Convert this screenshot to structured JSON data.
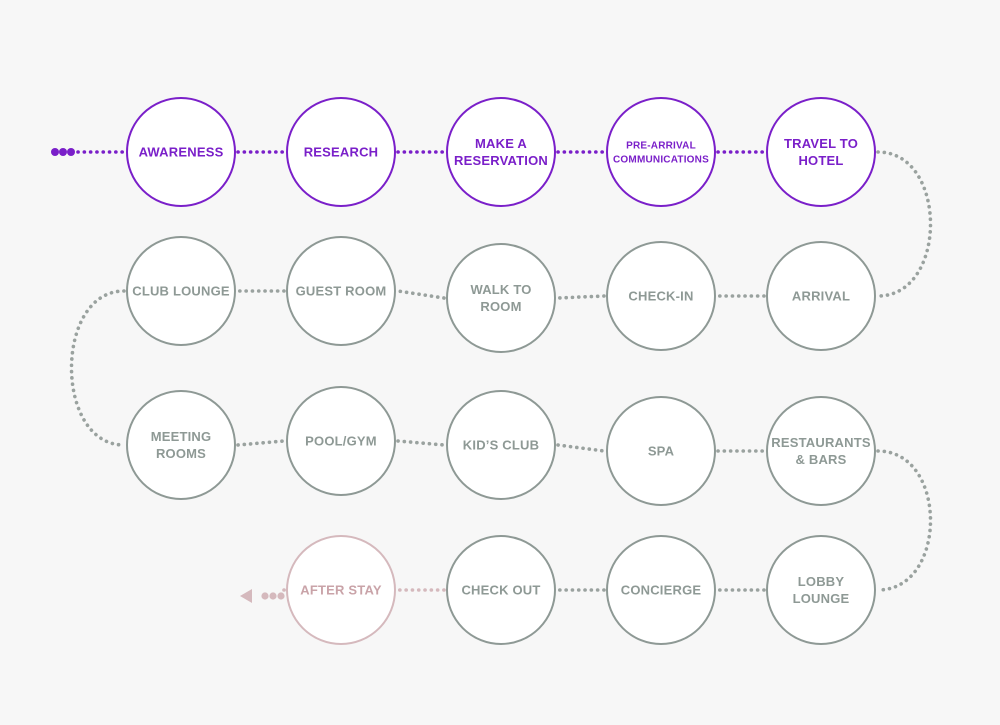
{
  "colors": {
    "background": "#f7f7f7",
    "pre_stay": "#7a1fc9",
    "in_stay": "#8e9995",
    "after_stay": "#d5b9bd",
    "after_stay_text": "#c9a3a8",
    "connector_gray": "#9aa29f",
    "connector_purple": "#7a1fc9",
    "connector_pink": "#d5b9bd"
  },
  "nodes": [
    {
      "id": "awareness",
      "lines": [
        "AWARENESS"
      ],
      "stage": "pre"
    },
    {
      "id": "research",
      "lines": [
        "RESEARCH"
      ],
      "stage": "pre"
    },
    {
      "id": "make-a-reservation",
      "lines": [
        "MAKE A",
        "RESERVATION"
      ],
      "stage": "pre"
    },
    {
      "id": "pre-arrival-communications",
      "lines": [
        "PRE-ARRIVAL",
        "COMMUNICATIONS"
      ],
      "stage": "pre"
    },
    {
      "id": "travel-to-hotel",
      "lines": [
        "TRAVEL TO",
        "HOTEL"
      ],
      "stage": "pre"
    },
    {
      "id": "arrival",
      "lines": [
        "ARRIVAL"
      ],
      "stage": "stay"
    },
    {
      "id": "check-in",
      "lines": [
        "CHECK-IN"
      ],
      "stage": "stay"
    },
    {
      "id": "walk-to-room",
      "lines": [
        "WALK TO",
        "ROOM"
      ],
      "stage": "stay"
    },
    {
      "id": "guest-room",
      "lines": [
        "GUEST ROOM"
      ],
      "stage": "stay"
    },
    {
      "id": "club-lounge",
      "lines": [
        "CLUB LOUNGE"
      ],
      "stage": "stay"
    },
    {
      "id": "meeting-rooms",
      "lines": [
        "MEETING",
        "ROOMS"
      ],
      "stage": "stay"
    },
    {
      "id": "pool-gym",
      "lines": [
        "POOL/GYM"
      ],
      "stage": "stay"
    },
    {
      "id": "kids-club",
      "lines": [
        "KID’S CLUB"
      ],
      "stage": "stay"
    },
    {
      "id": "spa",
      "lines": [
        "SPA"
      ],
      "stage": "stay"
    },
    {
      "id": "restaurants-bars",
      "lines": [
        "RESTAURANTS",
        "& BARS"
      ],
      "stage": "stay"
    },
    {
      "id": "lobby-lounge",
      "lines": [
        "LOBBY",
        "LOUNGE"
      ],
      "stage": "stay"
    },
    {
      "id": "concierge",
      "lines": [
        "CONCIERGE"
      ],
      "stage": "stay"
    },
    {
      "id": "check-out",
      "lines": [
        "CHECK OUT"
      ],
      "stage": "stay"
    },
    {
      "id": "after-stay",
      "lines": [
        "AFTER STAY"
      ],
      "stage": "after"
    }
  ]
}
